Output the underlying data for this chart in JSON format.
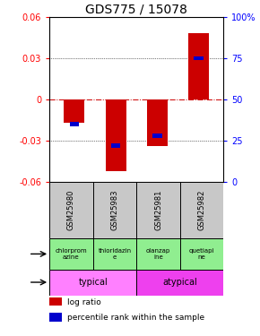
{
  "title": "GDS775 / 15078",
  "samples": [
    "GSM25980",
    "GSM25983",
    "GSM25981",
    "GSM25982"
  ],
  "log_ratio": [
    -0.017,
    -0.052,
    -0.034,
    0.048
  ],
  "percentile_rank_pct": [
    35,
    22,
    28,
    75
  ],
  "ylim": [
    -0.06,
    0.06
  ],
  "yticks_left": [
    -0.06,
    -0.03,
    0,
    0.03,
    0.06
  ],
  "yticks_right": [
    0,
    25,
    50,
    75,
    100
  ],
  "bar_width": 0.5,
  "agent_labels": [
    "chlorprom\nazine",
    "thioridazin\ne",
    "olanzap\nine",
    "quetiapi\nne"
  ],
  "agent_bg": "#90EE90",
  "typical_color": "#FF80FF",
  "atypical_color": "#EE40EE",
  "sample_bg": "#C8C8C8",
  "bar_color_red": "#CC0000",
  "bar_color_blue": "#0000CC",
  "title_fontsize": 10,
  "tick_fontsize": 7
}
